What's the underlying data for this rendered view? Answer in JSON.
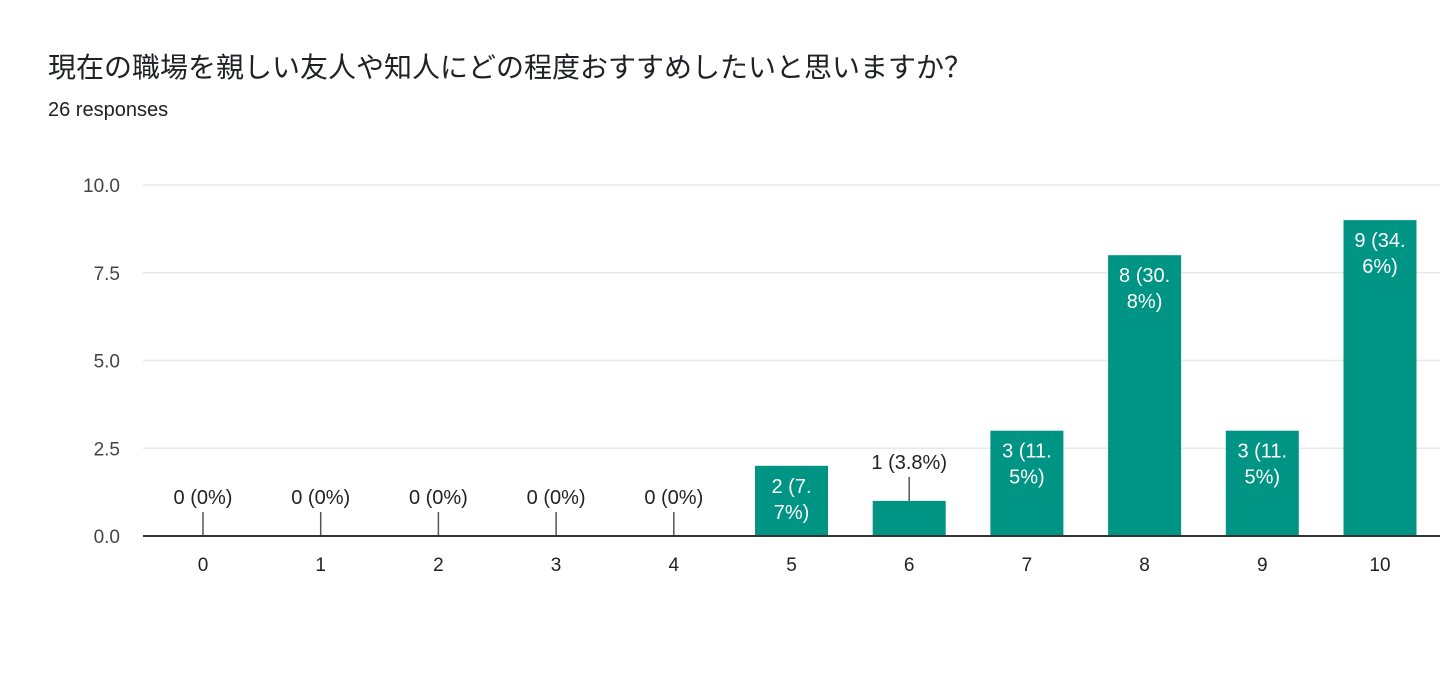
{
  "question": {
    "title": "現在の職場を親しい友人や知人にどの程度おすすめしたいと思いますか？",
    "responses": "26 responses"
  },
  "colors": {
    "bar": "#009485",
    "grid": "#e8e8e8",
    "axis": "#333333",
    "leader": "#555555"
  },
  "chart_data": {
    "type": "bar",
    "title": "",
    "xlabel": "",
    "ylabel": "",
    "ylim": [
      0,
      10
    ],
    "yticks": [
      "0.0",
      "2.5",
      "5.0",
      "7.5",
      "10.0"
    ],
    "categories": [
      "0",
      "1",
      "2",
      "3",
      "4",
      "5",
      "6",
      "7",
      "8",
      "9",
      "10"
    ],
    "values": [
      0,
      0,
      0,
      0,
      0,
      2,
      1,
      3,
      8,
      3,
      9
    ],
    "data_labels": [
      [
        "0 (0%)"
      ],
      [
        "0 (0%)"
      ],
      [
        "0 (0%)"
      ],
      [
        "0 (0%)"
      ],
      [
        "0 (0%)"
      ],
      [
        "2 (7.",
        "7%)"
      ],
      [
        "1 (3.8%)"
      ],
      [
        "3 (11.",
        "5%)"
      ],
      [
        "8 (30.",
        "8%)"
      ],
      [
        "3 (11.",
        "5%)"
      ],
      [
        "9 (34.",
        "6%)"
      ]
    ],
    "grid": true,
    "legend": "none"
  }
}
